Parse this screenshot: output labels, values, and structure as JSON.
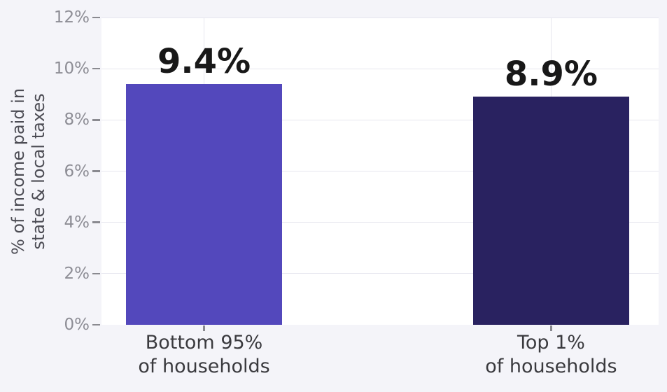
{
  "chart_data": {
    "type": "bar",
    "categories": [
      [
        "Bottom 95%",
        "of households"
      ],
      [
        "Top 1%",
        "of households"
      ]
    ],
    "values": [
      9.4,
      8.9
    ],
    "value_labels": [
      "9.4%",
      "8.9%"
    ],
    "bar_colors": [
      "#5348bc",
      "#292260"
    ],
    "title": "",
    "xlabel": "",
    "ylabel_lines": [
      "% of income paid in",
      "state & local taxes"
    ],
    "ylim": [
      0,
      12
    ],
    "ytick_values": [
      0,
      2,
      4,
      6,
      8,
      10,
      12
    ],
    "ytick_labels": [
      "0%",
      "2%",
      "4%",
      "6%",
      "8%",
      "10%",
      "12%"
    ],
    "grid": true,
    "legend": "none"
  },
  "colors": {
    "background": "#f4f4f9",
    "panel": "#ffffff",
    "gridline": "#e6e6ee",
    "tick": "#8a8a90",
    "tick_label": "#8d8d95",
    "axis_title": "#4c4c54",
    "category_label": "#3a3a3e",
    "value_label": "#181818"
  }
}
